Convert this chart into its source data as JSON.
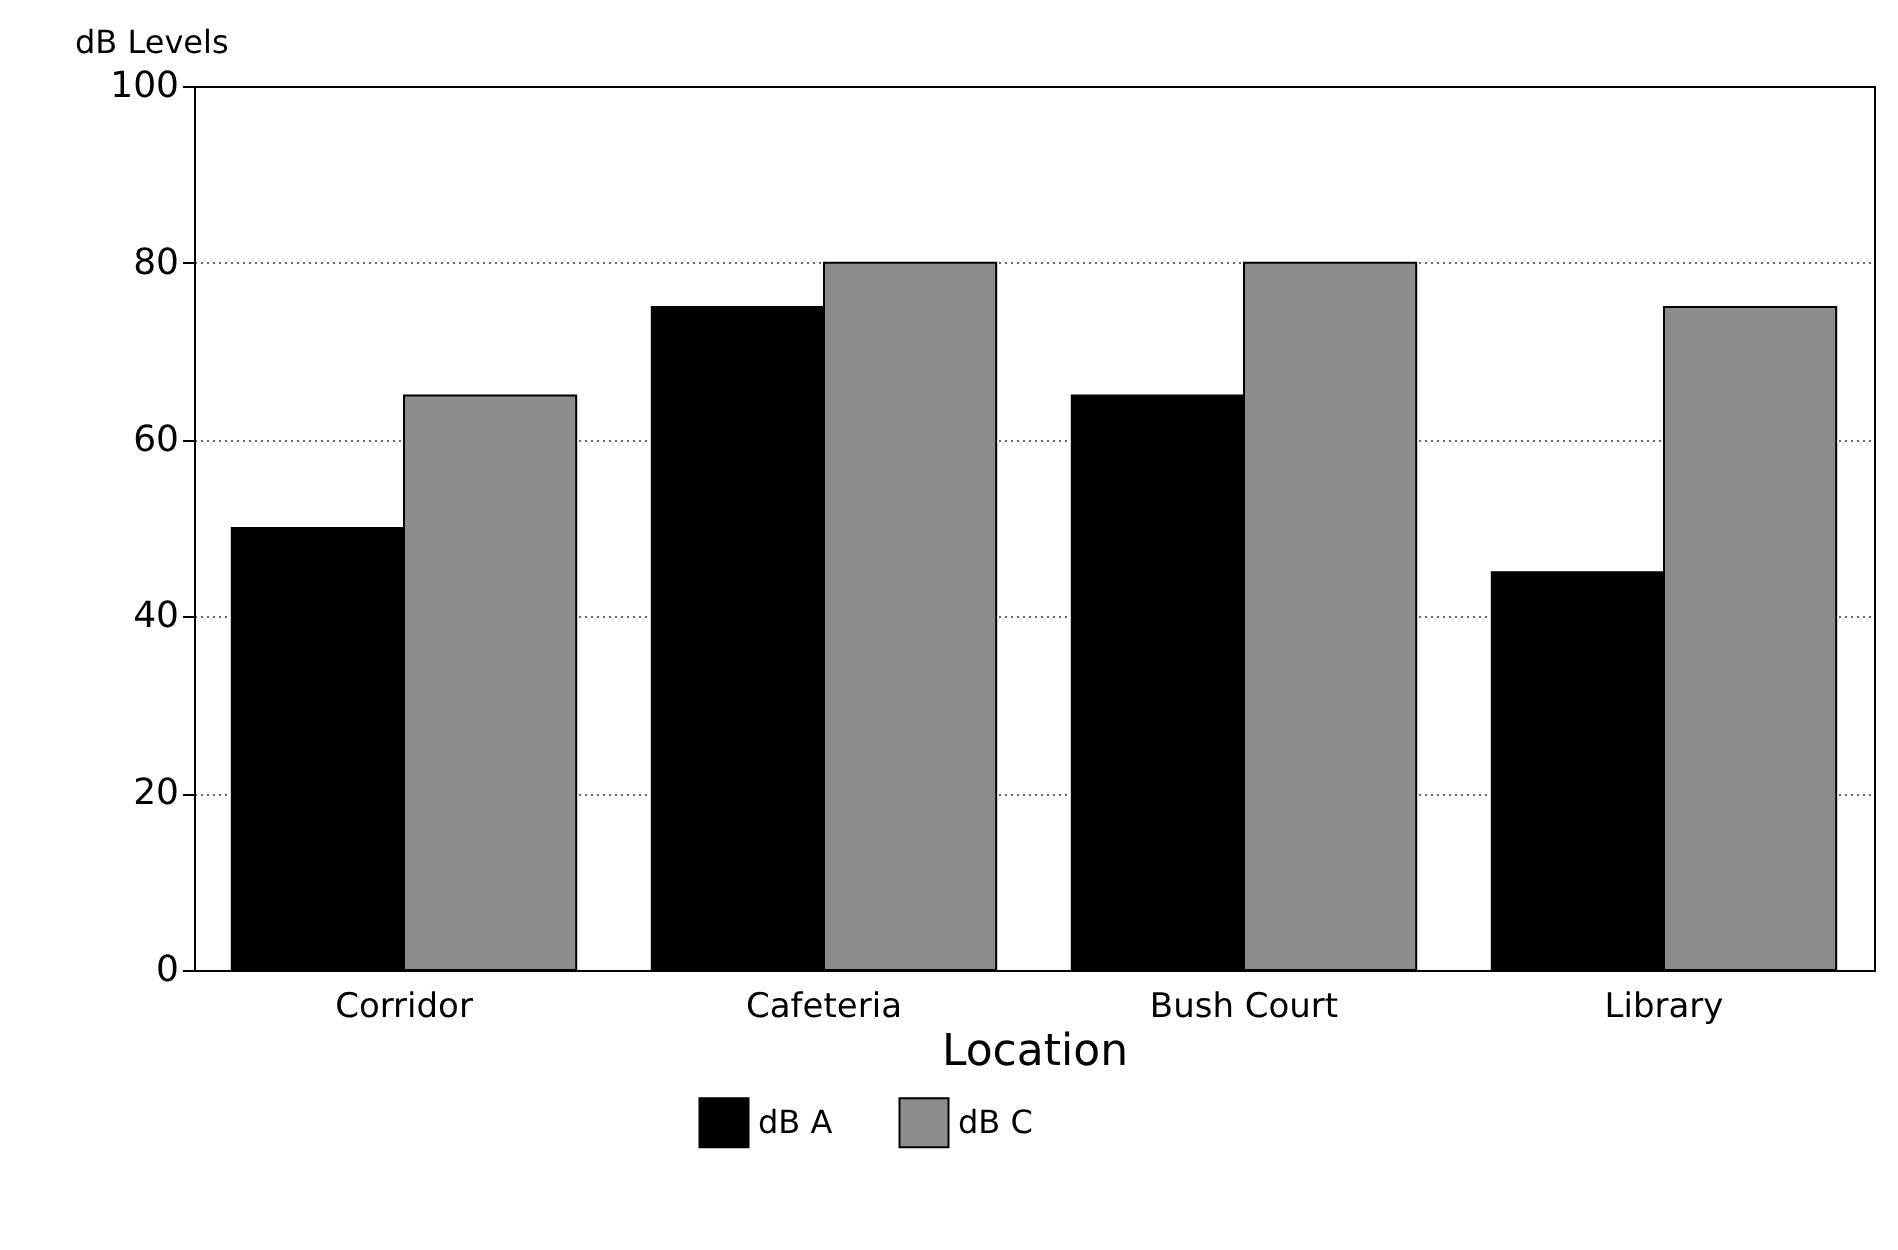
{
  "chart_data": {
    "type": "bar",
    "xlabel": "Location",
    "ylabel": "dB Levels",
    "categories": [
      "Corridor",
      "Cafeteria",
      "Bush Court",
      "Library"
    ],
    "series": [
      {
        "name": "dB A",
        "color": "#000000",
        "values": [
          50,
          75,
          65,
          45
        ]
      },
      {
        "name": "dB C",
        "color": "#8c8c8c",
        "values": [
          65,
          80,
          80,
          75
        ]
      }
    ],
    "ylim": [
      0,
      100
    ],
    "yticks": [
      0,
      20,
      40,
      60,
      80,
      100
    ],
    "grid": "y",
    "legend": "bottom"
  }
}
